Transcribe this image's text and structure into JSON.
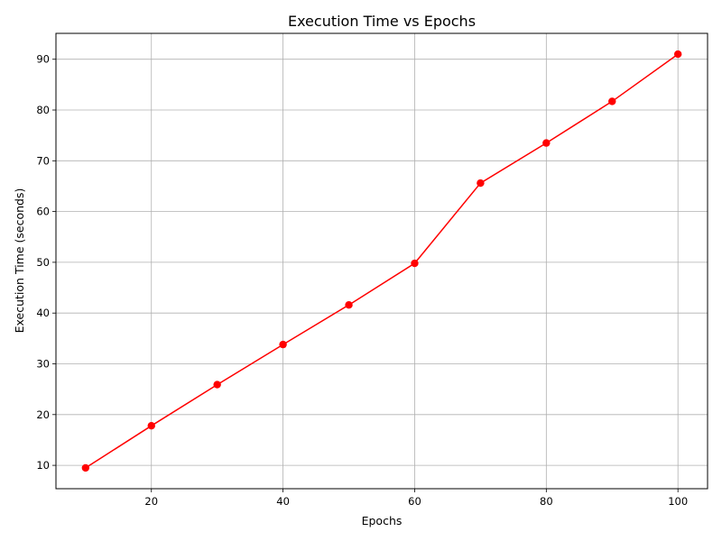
{
  "chart_data": {
    "type": "line",
    "title": "Execution Time vs Epochs",
    "xlabel": "Epochs",
    "ylabel": "Execution Time (seconds)",
    "xlim": [
      5.5,
      104.5
    ],
    "ylim": [
      5.4,
      95.1
    ],
    "xticks": [
      20,
      40,
      60,
      80,
      100
    ],
    "yticks": [
      10,
      20,
      30,
      40,
      50,
      60,
      70,
      80,
      90
    ],
    "grid": true,
    "legend": "none",
    "series": [
      {
        "color": "#ff0000",
        "marker": "circle",
        "x": [
          10,
          20,
          30,
          40,
          50,
          60,
          70,
          80,
          90,
          100
        ],
        "y": [
          9.5,
          17.8,
          25.9,
          33.8,
          41.6,
          49.8,
          65.6,
          73.5,
          81.7,
          91.0
        ]
      }
    ]
  }
}
